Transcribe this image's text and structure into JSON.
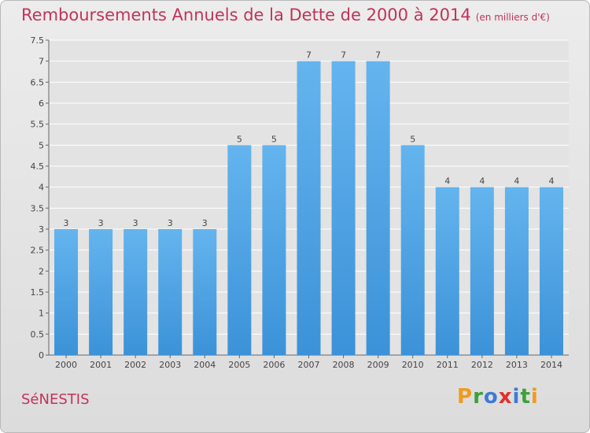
{
  "title": "Remboursements Annuels de la Dette de 2000 à 2014",
  "unit": "(en milliers d'€)",
  "place": "SéNESTIS",
  "logo": {
    "letters": [
      "P",
      "r",
      "o",
      "x",
      "i",
      "t",
      "i"
    ],
    "colors": [
      "#f29a1c",
      "#3aa13c",
      "#3d7bd6",
      "#e0312c",
      "#3d7bd6",
      "#3aa13c",
      "#f29a1c"
    ]
  },
  "colors": {
    "bar": "#3c92d8",
    "bar_light": "#64b4ee",
    "title": "#c2335a",
    "grid": "#ffffff"
  },
  "chart_data": {
    "type": "bar",
    "categories": [
      "2000",
      "2001",
      "2002",
      "2003",
      "2004",
      "2005",
      "2006",
      "2007",
      "2008",
      "2009",
      "2010",
      "2011",
      "2012",
      "2013",
      "2014"
    ],
    "values": [
      3,
      3,
      3,
      3,
      3,
      5,
      5,
      7,
      7,
      7,
      5,
      4,
      4,
      4,
      4
    ],
    "data_labels": [
      "3",
      "3",
      "3",
      "3",
      "3",
      "5",
      "5",
      "7",
      "7",
      "7",
      "5",
      "4",
      "4",
      "4",
      "4"
    ],
    "yticks": [
      "0",
      "0.5",
      "1",
      "1.5",
      "2",
      "2.5",
      "3",
      "3.5",
      "4",
      "4.5",
      "5",
      "5.5",
      "6",
      "6.5",
      "7",
      "7.5"
    ],
    "ylim": [
      0,
      7.5
    ],
    "grid": true
  }
}
